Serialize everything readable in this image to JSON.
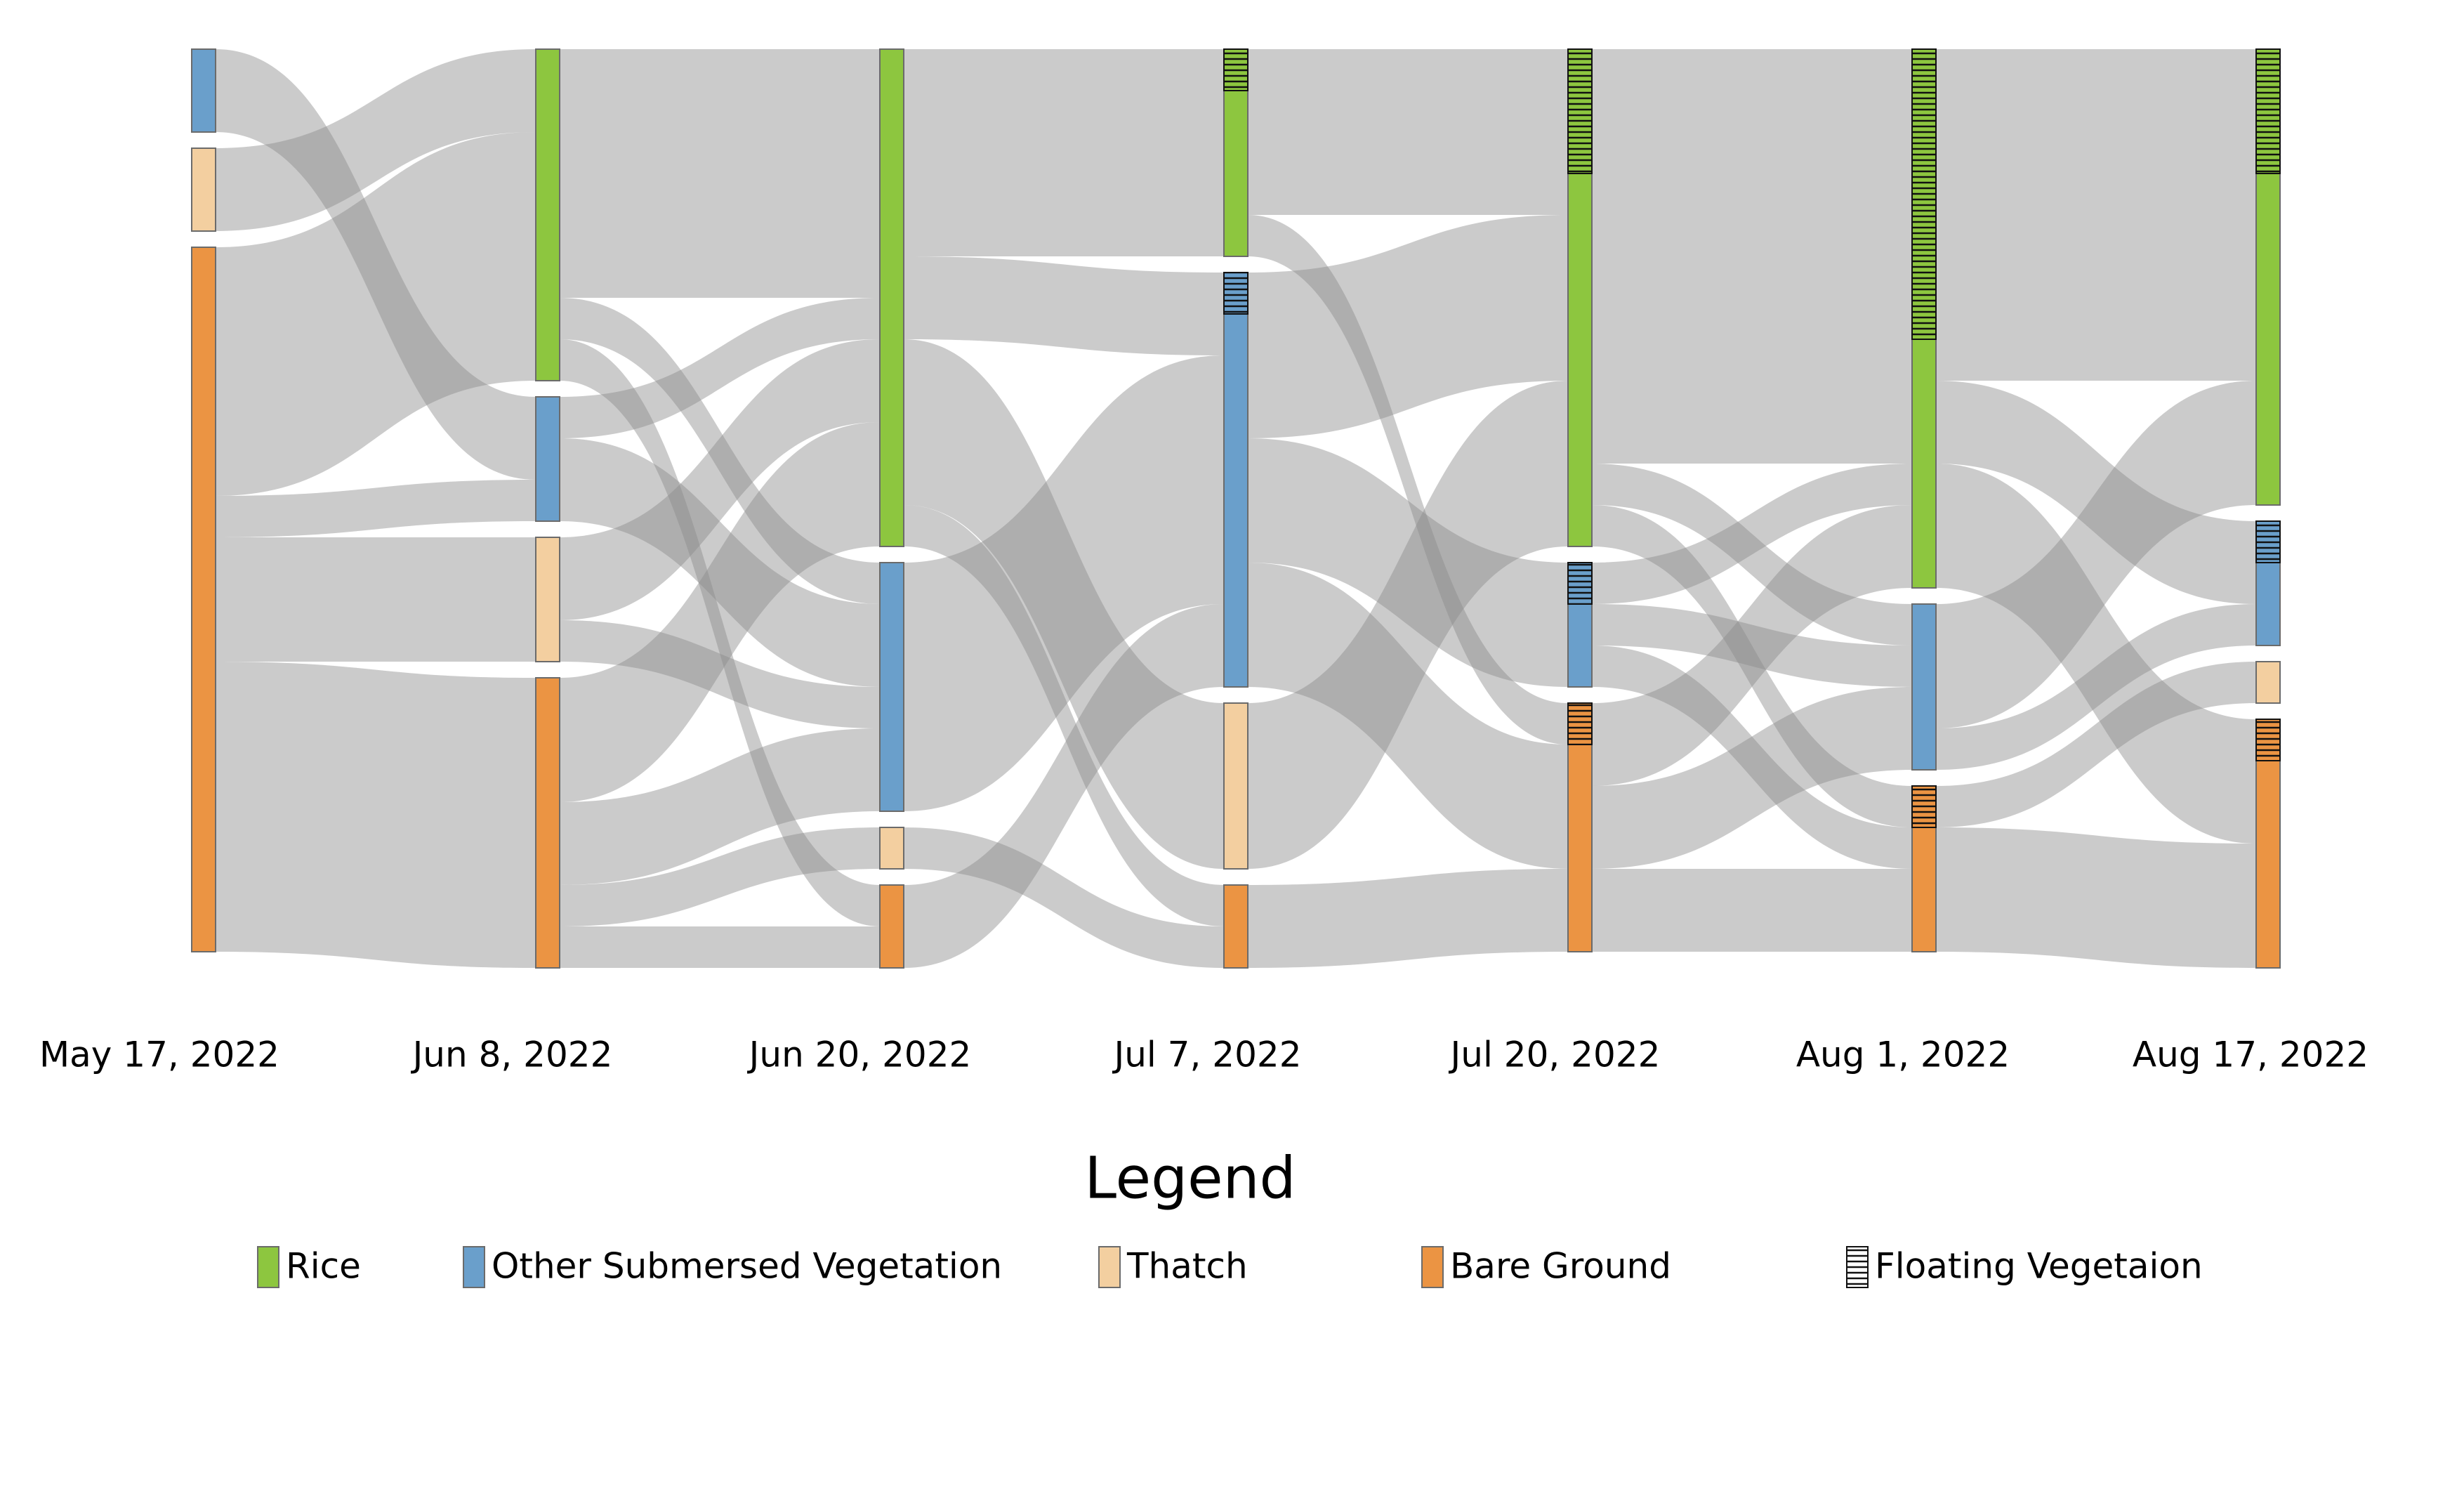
{
  "chart_data": {
    "type": "sankey",
    "legend_title": "Legend",
    "categories": [
      "Rice",
      "Other Submersed Vegetation",
      "Thatch",
      "Bare Ground"
    ],
    "colors": [
      "#8dc63f",
      "#6a9fcb",
      "#f3cfa0",
      "#eb9443"
    ],
    "floating_label": "Floating Vegetaion",
    "columns": [
      {
        "date": "May 17, 2022",
        "nodes": [
          {
            "category": "Other Submersed Vegetation",
            "value": 2,
            "floating": 0
          },
          {
            "category": "Thatch",
            "value": 2,
            "floating": 0
          },
          {
            "category": "Bare Ground",
            "value": 17,
            "floating": 0
          }
        ]
      },
      {
        "date": "Jun 8, 2022",
        "nodes": [
          {
            "category": "Rice",
            "value": 8,
            "floating": 0
          },
          {
            "category": "Other Submersed Vegetation",
            "value": 3,
            "floating": 0
          },
          {
            "category": "Thatch",
            "value": 3,
            "floating": 0
          },
          {
            "category": "Bare Ground",
            "value": 7,
            "floating": 0
          }
        ]
      },
      {
        "date": "Jun 20, 2022",
        "nodes": [
          {
            "category": "Rice",
            "value": 12,
            "floating": 0
          },
          {
            "category": "Other Submersed Vegetation",
            "value": 6,
            "floating": 0
          },
          {
            "category": "Thatch",
            "value": 1,
            "floating": 0
          },
          {
            "category": "Bare Ground",
            "value": 2,
            "floating": 0
          }
        ]
      },
      {
        "date": "Jul 7, 2022",
        "nodes": [
          {
            "category": "Rice",
            "value": 5,
            "floating": 1
          },
          {
            "category": "Other Submersed Vegetation",
            "value": 10,
            "floating": 1
          },
          {
            "category": "Thatch",
            "value": 4,
            "floating": 0
          },
          {
            "category": "Bare Ground",
            "value": 2,
            "floating": 0
          }
        ]
      },
      {
        "date": "Jul 20, 2022",
        "nodes": [
          {
            "category": "Rice",
            "value": 12,
            "floating": 3
          },
          {
            "category": "Other Submersed Vegetation",
            "value": 3,
            "floating": 1
          },
          {
            "category": "Bare Ground",
            "value": 6,
            "floating": 1
          }
        ]
      },
      {
        "date": "Aug 1, 2022",
        "nodes": [
          {
            "category": "Rice",
            "value": 13,
            "floating": 7
          },
          {
            "category": "Other Submersed Vegetation",
            "value": 4,
            "floating": 0
          },
          {
            "category": "Bare Ground",
            "value": 4,
            "floating": 1
          }
        ]
      },
      {
        "date": "Aug 17, 2022",
        "nodes": [
          {
            "category": "Rice",
            "value": 11,
            "floating": 3
          },
          {
            "category": "Other Submersed Vegetation",
            "value": 3,
            "floating": 1
          },
          {
            "category": "Thatch",
            "value": 1,
            "floating": 0
          },
          {
            "category": "Bare Ground",
            "value": 6,
            "floating": 1
          }
        ]
      }
    ],
    "flows": [
      [
        {
          "from": "Other Submersed Vegetation",
          "to": "Other Submersed Vegetation",
          "value": 2
        },
        {
          "from": "Thatch",
          "to": "Rice",
          "value": 2
        },
        {
          "from": "Bare Ground",
          "to": "Rice",
          "value": 6
        },
        {
          "from": "Bare Ground",
          "to": "Other Submersed Vegetation",
          "value": 1
        },
        {
          "from": "Bare Ground",
          "to": "Thatch",
          "value": 3
        },
        {
          "from": "Bare Ground",
          "to": "Bare Ground",
          "value": 7
        }
      ],
      [
        {
          "from": "Rice",
          "to": "Rice",
          "value": 6
        },
        {
          "from": "Rice",
          "to": "Other Submersed Vegetation",
          "value": 1
        },
        {
          "from": "Rice",
          "to": "Bare Ground",
          "value": 1
        },
        {
          "from": "Other Submersed Vegetation",
          "to": "Rice",
          "value": 1
        },
        {
          "from": "Other Submersed Vegetation",
          "to": "Other Submersed Vegetation",
          "value": 2
        },
        {
          "from": "Thatch",
          "to": "Rice",
          "value": 2
        },
        {
          "from": "Thatch",
          "to": "Other Submersed Vegetation",
          "value": 1
        },
        {
          "from": "Bare Ground",
          "to": "Rice",
          "value": 3
        },
        {
          "from": "Bare Ground",
          "to": "Other Submersed Vegetation",
          "value": 2
        },
        {
          "from": "Bare Ground",
          "to": "Thatch",
          "value": 1
        },
        {
          "from": "Bare Ground",
          "to": "Bare Ground",
          "value": 1
        }
      ],
      [
        {
          "from": "Rice",
          "to": "Rice",
          "value": 5
        },
        {
          "from": "Rice",
          "to": "Other Submersed Vegetation",
          "value": 2
        },
        {
          "from": "Rice",
          "to": "Thatch",
          "value": 4
        },
        {
          "from": "Rice",
          "to": "Bare Ground",
          "value": 1
        },
        {
          "from": "Other Submersed Vegetation",
          "to": "Other Submersed Vegetation",
          "value": 6
        },
        {
          "from": "Thatch",
          "to": "Bare Ground",
          "value": 1
        },
        {
          "from": "Bare Ground",
          "to": "Other Submersed Vegetation",
          "value": 2
        }
      ],
      [
        {
          "from": "Rice",
          "to": "Rice",
          "value": 4
        },
        {
          "from": "Rice",
          "to": "Bare Ground",
          "value": 1
        },
        {
          "from": "Other Submersed Vegetation",
          "to": "Rice",
          "value": 4
        },
        {
          "from": "Other Submersed Vegetation",
          "to": "Other Submersed Vegetation",
          "value": 3
        },
        {
          "from": "Other Submersed Vegetation",
          "to": "Bare Ground",
          "value": 3
        },
        {
          "from": "Thatch",
          "to": "Rice",
          "value": 4
        },
        {
          "from": "Bare Ground",
          "to": "Bare Ground",
          "value": 2
        }
      ],
      [
        {
          "from": "Rice",
          "to": "Rice",
          "value": 10
        },
        {
          "from": "Rice",
          "to": "Other Submersed Vegetation",
          "value": 1
        },
        {
          "from": "Rice",
          "to": "Bare Ground",
          "value": 1
        },
        {
          "from": "Other Submersed Vegetation",
          "to": "Rice",
          "value": 1
        },
        {
          "from": "Other Submersed Vegetation",
          "to": "Other Submersed Vegetation",
          "value": 1
        },
        {
          "from": "Other Submersed Vegetation",
          "to": "Bare Ground",
          "value": 1
        },
        {
          "from": "Bare Ground",
          "to": "Rice",
          "value": 2
        },
        {
          "from": "Bare Ground",
          "to": "Other Submersed Vegetation",
          "value": 2
        },
        {
          "from": "Bare Ground",
          "to": "Bare Ground",
          "value": 2
        }
      ],
      [
        {
          "from": "Rice",
          "to": "Rice",
          "value": 8
        },
        {
          "from": "Rice",
          "to": "Other Submersed Vegetation",
          "value": 2
        },
        {
          "from": "Rice",
          "to": "Bare Ground",
          "value": 3
        },
        {
          "from": "Other Submersed Vegetation",
          "to": "Rice",
          "value": 3
        },
        {
          "from": "Other Submersed Vegetation",
          "to": "Other Submersed Vegetation",
          "value": 1
        },
        {
          "from": "Bare Ground",
          "to": "Thatch",
          "value": 1
        },
        {
          "from": "Bare Ground",
          "to": "Bare Ground",
          "value": 3
        }
      ]
    ]
  }
}
